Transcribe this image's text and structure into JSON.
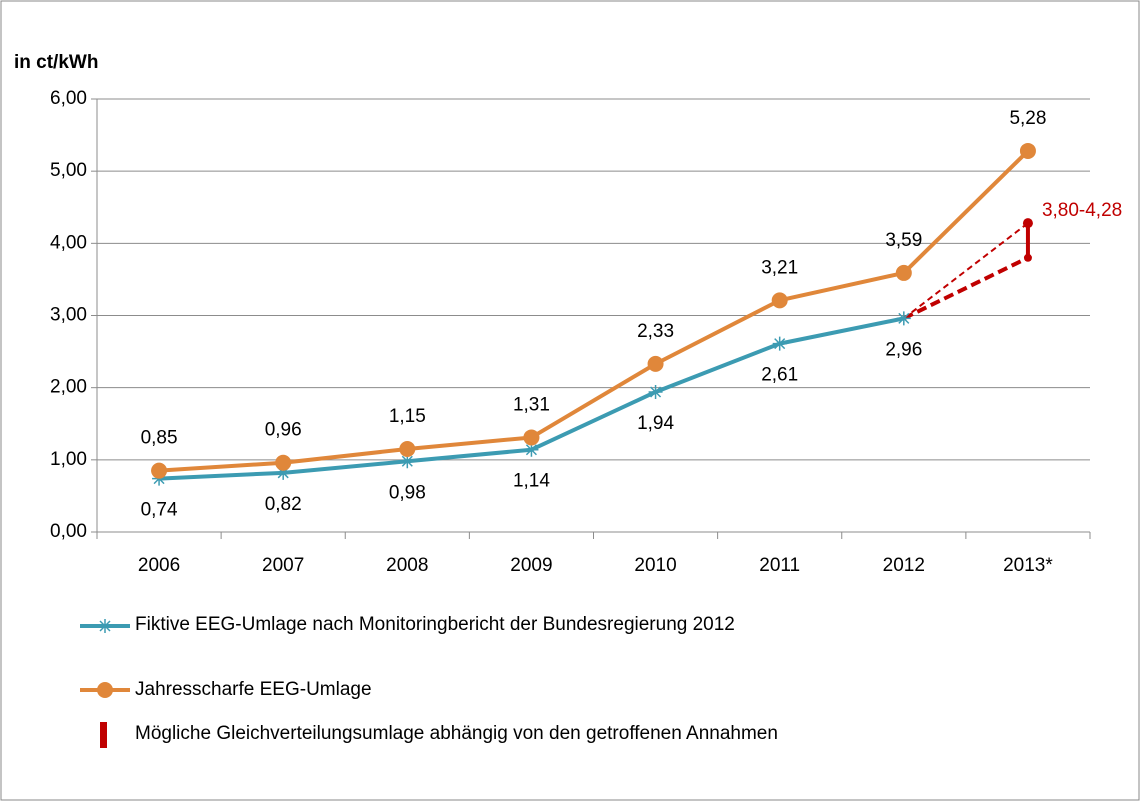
{
  "chart_data": {
    "type": "line",
    "y_label": "in ct/kWh",
    "categories": [
      "2006",
      "2007",
      "2008",
      "2009",
      "2010",
      "2011",
      "2012",
      "2013*"
    ],
    "series": [
      {
        "name": "Fiktive EEG-Umlage nach Monitoringbericht der Bundesregierung 2012",
        "color": "#3c9bb2",
        "marker": "asterisk",
        "values": [
          0.74,
          0.82,
          0.98,
          1.14,
          1.94,
          2.61,
          2.96,
          null
        ],
        "value_labels": [
          "0,74",
          "0,82",
          "0,98",
          "1,14",
          "1,94",
          "2,61",
          "2,96",
          null
        ]
      },
      {
        "name": "Jahresscharfe EEG-Umlage",
        "color": "#e0873a",
        "marker": "circle",
        "values": [
          0.85,
          0.96,
          1.15,
          1.31,
          2.33,
          3.21,
          3.59,
          5.28
        ],
        "value_labels": [
          "0,85",
          "0,96",
          "1,15",
          "1,31",
          "2,33",
          "3,21",
          "3,59",
          "5,28"
        ]
      }
    ],
    "range": {
      "name": "Mögliche Gleichverteilungsumlage abhängig von den getroffenen Annahmen",
      "color": "#c00000",
      "low": 3.8,
      "high": 4.28,
      "label": "3,80-4,28"
    },
    "ylim": [
      0,
      6
    ],
    "yticks": [
      {
        "value": 0,
        "label": "0,00"
      },
      {
        "value": 1,
        "label": "1,00"
      },
      {
        "value": 2,
        "label": "2,00"
      },
      {
        "value": 3,
        "label": "3,00"
      },
      {
        "value": 4,
        "label": "4,00"
      },
      {
        "value": 5,
        "label": "5,00"
      },
      {
        "value": 6,
        "label": "6,00"
      }
    ],
    "grid": true
  }
}
